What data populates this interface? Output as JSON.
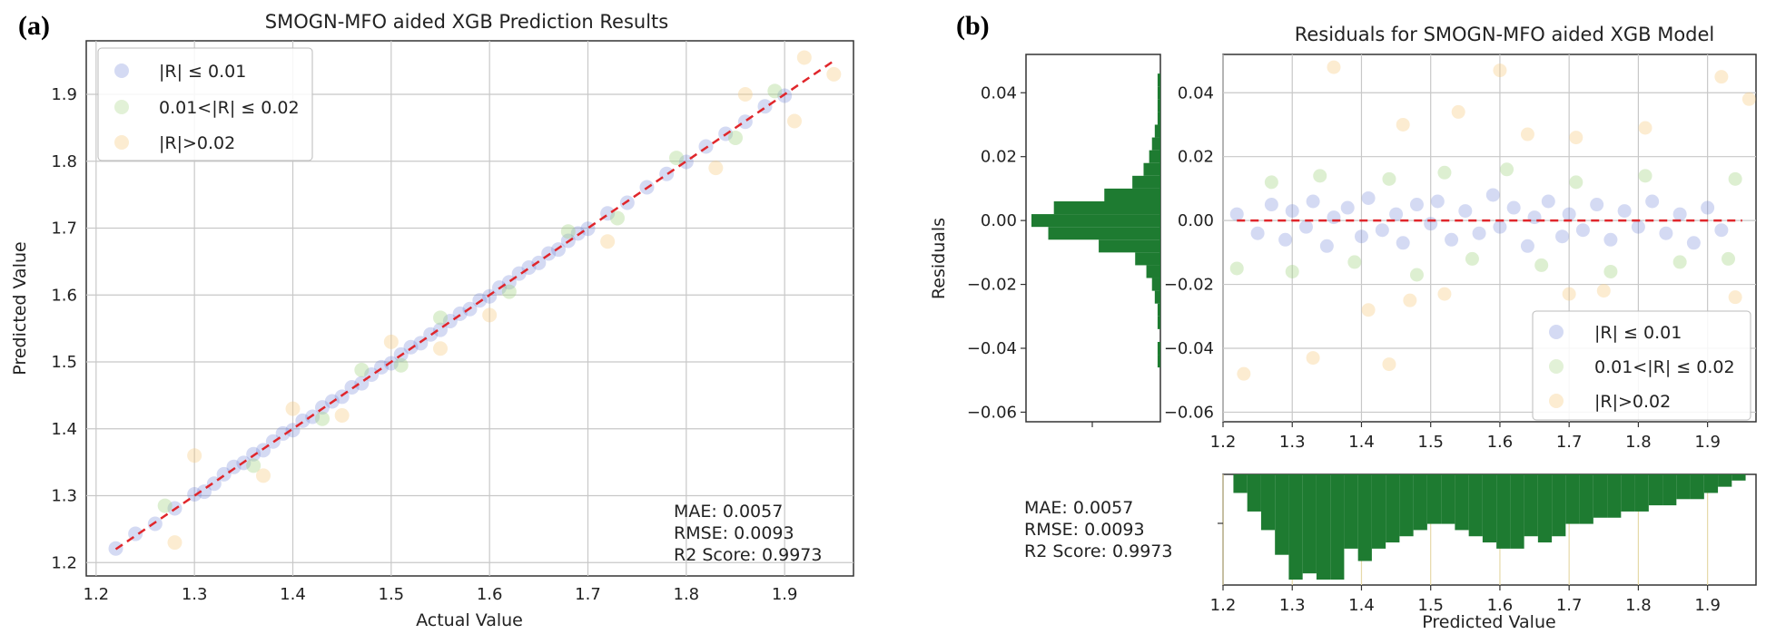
{
  "panels": {
    "a": {
      "label": "(a)"
    },
    "b": {
      "label": "(b)"
    }
  },
  "colors": {
    "low": "#6f86d6",
    "mid": "#9fd07c",
    "high": "#f7c97a",
    "fit_line": "#e0262b",
    "hist": "#1e7b31",
    "grid": "#c8c8c8"
  },
  "chart_data": [
    {
      "type": "scatter",
      "title": "SMOGN-MFO aided XGB Prediction Results",
      "xlabel": "Actual Value",
      "ylabel": "Predicted Value",
      "xlim": [
        1.19,
        1.97
      ],
      "ylim": [
        1.18,
        1.98
      ],
      "xticks": [
        "1.2",
        "1.3",
        "1.4",
        "1.5",
        "1.6",
        "1.7",
        "1.8",
        "1.9"
      ],
      "yticks": [
        "1.2",
        "1.3",
        "1.4",
        "1.5",
        "1.6",
        "1.7",
        "1.8",
        "1.9"
      ],
      "grid": true,
      "legend_position": "top-left",
      "legend": [
        "|R| ≤ 0.01",
        "0.01<|R| ≤ 0.02",
        "|R|>0.02"
      ],
      "reference_line": {
        "x": [
          1.22,
          1.95
        ],
        "y": [
          1.22,
          1.95
        ],
        "style": "dashed"
      },
      "metrics": [
        "MAE: 0.0057",
        "RMSE: 0.0093",
        "R2 Score: 0.9973"
      ],
      "series": [
        {
          "name": "|R| ≤ 0.01",
          "points": [
            [
              1.22,
              1.221
            ],
            [
              1.24,
              1.243
            ],
            [
              1.26,
              1.258
            ],
            [
              1.28,
              1.281
            ],
            [
              1.3,
              1.302
            ],
            [
              1.31,
              1.306
            ],
            [
              1.32,
              1.318
            ],
            [
              1.33,
              1.332
            ],
            [
              1.34,
              1.343
            ],
            [
              1.35,
              1.349
            ],
            [
              1.36,
              1.362
            ],
            [
              1.37,
              1.368
            ],
            [
              1.38,
              1.381
            ],
            [
              1.39,
              1.393
            ],
            [
              1.4,
              1.398
            ],
            [
              1.41,
              1.412
            ],
            [
              1.42,
              1.418
            ],
            [
              1.43,
              1.432
            ],
            [
              1.44,
              1.441
            ],
            [
              1.45,
              1.448
            ],
            [
              1.46,
              1.462
            ],
            [
              1.47,
              1.468
            ],
            [
              1.48,
              1.481
            ],
            [
              1.49,
              1.492
            ],
            [
              1.5,
              1.498
            ],
            [
              1.51,
              1.511
            ],
            [
              1.52,
              1.522
            ],
            [
              1.53,
              1.528
            ],
            [
              1.54,
              1.541
            ],
            [
              1.55,
              1.548
            ],
            [
              1.56,
              1.561
            ],
            [
              1.57,
              1.572
            ],
            [
              1.58,
              1.579
            ],
            [
              1.59,
              1.592
            ],
            [
              1.6,
              1.598
            ],
            [
              1.61,
              1.611
            ],
            [
              1.62,
              1.619
            ],
            [
              1.63,
              1.632
            ],
            [
              1.64,
              1.641
            ],
            [
              1.65,
              1.648
            ],
            [
              1.66,
              1.662
            ],
            [
              1.67,
              1.668
            ],
            [
              1.68,
              1.681
            ],
            [
              1.69,
              1.692
            ],
            [
              1.7,
              1.699
            ],
            [
              1.72,
              1.722
            ],
            [
              1.74,
              1.738
            ],
            [
              1.76,
              1.761
            ],
            [
              1.78,
              1.781
            ],
            [
              1.8,
              1.799
            ],
            [
              1.82,
              1.822
            ],
            [
              1.84,
              1.841
            ],
            [
              1.86,
              1.859
            ],
            [
              1.88,
              1.882
            ],
            [
              1.9,
              1.898
            ]
          ]
        },
        {
          "name": "0.01<|R| ≤ 0.02",
          "points": [
            [
              1.27,
              1.285
            ],
            [
              1.36,
              1.345
            ],
            [
              1.43,
              1.415
            ],
            [
              1.47,
              1.488
            ],
            [
              1.51,
              1.495
            ],
            [
              1.55,
              1.566
            ],
            [
              1.62,
              1.605
            ],
            [
              1.68,
              1.695
            ],
            [
              1.73,
              1.715
            ],
            [
              1.79,
              1.805
            ],
            [
              1.85,
              1.835
            ],
            [
              1.89,
              1.905
            ]
          ]
        },
        {
          "name": "|R|>0.02",
          "points": [
            [
              1.28,
              1.23
            ],
            [
              1.3,
              1.36
            ],
            [
              1.37,
              1.33
            ],
            [
              1.4,
              1.43
            ],
            [
              1.45,
              1.42
            ],
            [
              1.5,
              1.53
            ],
            [
              1.55,
              1.52
            ],
            [
              1.6,
              1.57
            ],
            [
              1.72,
              1.68
            ],
            [
              1.83,
              1.79
            ],
            [
              1.86,
              1.9
            ],
            [
              1.91,
              1.86
            ],
            [
              1.92,
              1.955
            ],
            [
              1.95,
              1.93
            ]
          ]
        }
      ]
    },
    {
      "type": "scatter",
      "title": "Residuals for SMOGN-MFO aided XGB Model",
      "xlabel": "Predicted Value",
      "ylabel": "Residuals",
      "xlim": [
        1.2,
        1.97
      ],
      "ylim": [
        -0.063,
        0.052
      ],
      "xticks": [
        "1.2",
        "1.3",
        "1.4",
        "1.5",
        "1.6",
        "1.7",
        "1.8",
        "1.9"
      ],
      "yticks": [
        "−0.06",
        "−0.04",
        "−0.02",
        "0.00",
        "0.02",
        "0.04"
      ],
      "grid": true,
      "legend_position": "bottom-right",
      "legend": [
        "|R| ≤ 0.01",
        "0.01<|R| ≤ 0.02",
        "|R|>0.02"
      ],
      "reference_line": {
        "x": [
          1.22,
          1.95
        ],
        "y": [
          0,
          0
        ],
        "style": "dashed"
      },
      "metrics": [
        "MAE: 0.0057",
        "RMSE: 0.0093",
        "R2 Score: 0.9973"
      ],
      "series": [
        {
          "name": "|R| ≤ 0.01",
          "points": [
            [
              1.22,
              0.002
            ],
            [
              1.25,
              -0.004
            ],
            [
              1.27,
              0.005
            ],
            [
              1.29,
              -0.006
            ],
            [
              1.3,
              0.003
            ],
            [
              1.32,
              -0.002
            ],
            [
              1.33,
              0.006
            ],
            [
              1.35,
              -0.008
            ],
            [
              1.36,
              0.001
            ],
            [
              1.38,
              0.004
            ],
            [
              1.4,
              -0.005
            ],
            [
              1.41,
              0.007
            ],
            [
              1.43,
              -0.003
            ],
            [
              1.45,
              0.002
            ],
            [
              1.46,
              -0.007
            ],
            [
              1.48,
              0.005
            ],
            [
              1.5,
              -0.001
            ],
            [
              1.51,
              0.006
            ],
            [
              1.53,
              -0.006
            ],
            [
              1.55,
              0.003
            ],
            [
              1.57,
              -0.004
            ],
            [
              1.59,
              0.008
            ],
            [
              1.6,
              -0.002
            ],
            [
              1.62,
              0.004
            ],
            [
              1.64,
              -0.008
            ],
            [
              1.65,
              0.001
            ],
            [
              1.67,
              0.006
            ],
            [
              1.69,
              -0.005
            ],
            [
              1.7,
              0.002
            ],
            [
              1.72,
              -0.003
            ],
            [
              1.74,
              0.005
            ],
            [
              1.76,
              -0.006
            ],
            [
              1.78,
              0.003
            ],
            [
              1.8,
              -0.002
            ],
            [
              1.82,
              0.006
            ],
            [
              1.84,
              -0.004
            ],
            [
              1.86,
              0.002
            ],
            [
              1.88,
              -0.007
            ],
            [
              1.9,
              0.004
            ],
            [
              1.92,
              -0.003
            ]
          ]
        },
        {
          "name": "0.01<|R| ≤ 0.02",
          "points": [
            [
              1.22,
              -0.015
            ],
            [
              1.27,
              0.012
            ],
            [
              1.3,
              -0.016
            ],
            [
              1.34,
              0.014
            ],
            [
              1.39,
              -0.013
            ],
            [
              1.44,
              0.013
            ],
            [
              1.48,
              -0.017
            ],
            [
              1.52,
              0.015
            ],
            [
              1.56,
              -0.012
            ],
            [
              1.61,
              0.016
            ],
            [
              1.66,
              -0.014
            ],
            [
              1.71,
              0.012
            ],
            [
              1.76,
              -0.016
            ],
            [
              1.81,
              0.014
            ],
            [
              1.86,
              -0.013
            ],
            [
              1.93,
              -0.012
            ],
            [
              1.94,
              0.013
            ]
          ]
        },
        {
          "name": "|R|>0.02",
          "points": [
            [
              1.23,
              -0.048
            ],
            [
              1.33,
              -0.043
            ],
            [
              1.36,
              0.048
            ],
            [
              1.41,
              -0.028
            ],
            [
              1.44,
              -0.045
            ],
            [
              1.46,
              0.03
            ],
            [
              1.47,
              -0.025
            ],
            [
              1.52,
              -0.023
            ],
            [
              1.54,
              0.034
            ],
            [
              1.6,
              0.047
            ],
            [
              1.64,
              0.027
            ],
            [
              1.7,
              -0.023
            ],
            [
              1.71,
              0.026
            ],
            [
              1.75,
              -0.022
            ],
            [
              1.81,
              0.029
            ],
            [
              1.92,
              0.045
            ],
            [
              1.94,
              -0.024
            ],
            [
              1.96,
              0.038
            ]
          ]
        }
      ]
    },
    {
      "type": "bar",
      "orientation": "horizontal",
      "role": "marginal histogram of residuals",
      "bin_centers": [
        -0.044,
        -0.04,
        -0.036,
        -0.032,
        -0.028,
        -0.024,
        -0.02,
        -0.016,
        -0.012,
        -0.008,
        -0.004,
        0.0,
        0.004,
        0.008,
        0.012,
        0.016,
        0.02,
        0.024,
        0.028,
        0.032,
        0.036,
        0.04,
        0.044
      ],
      "counts": [
        1,
        1,
        0,
        1,
        1,
        2,
        3,
        5,
        9,
        22,
        40,
        46,
        38,
        20,
        10,
        6,
        4,
        3,
        2,
        1,
        1,
        1,
        1
      ]
    },
    {
      "type": "bar",
      "role": "marginal histogram of predicted values",
      "bin_centers": [
        1.225,
        1.245,
        1.265,
        1.285,
        1.305,
        1.325,
        1.345,
        1.365,
        1.385,
        1.405,
        1.425,
        1.445,
        1.465,
        1.485,
        1.505,
        1.525,
        1.545,
        1.565,
        1.585,
        1.605,
        1.625,
        1.645,
        1.665,
        1.685,
        1.705,
        1.725,
        1.745,
        1.765,
        1.785,
        1.805,
        1.825,
        1.845,
        1.865,
        1.885,
        1.905,
        1.925,
        1.945
      ],
      "counts": [
        3,
        6,
        9,
        13,
        17,
        16,
        17,
        17,
        12,
        14,
        12,
        11,
        10,
        9,
        8,
        8,
        9,
        10,
        11,
        12,
        12,
        10,
        11,
        10,
        8,
        8,
        7,
        7,
        6,
        6,
        5,
        5,
        4,
        4,
        3,
        2,
        1
      ]
    }
  ]
}
